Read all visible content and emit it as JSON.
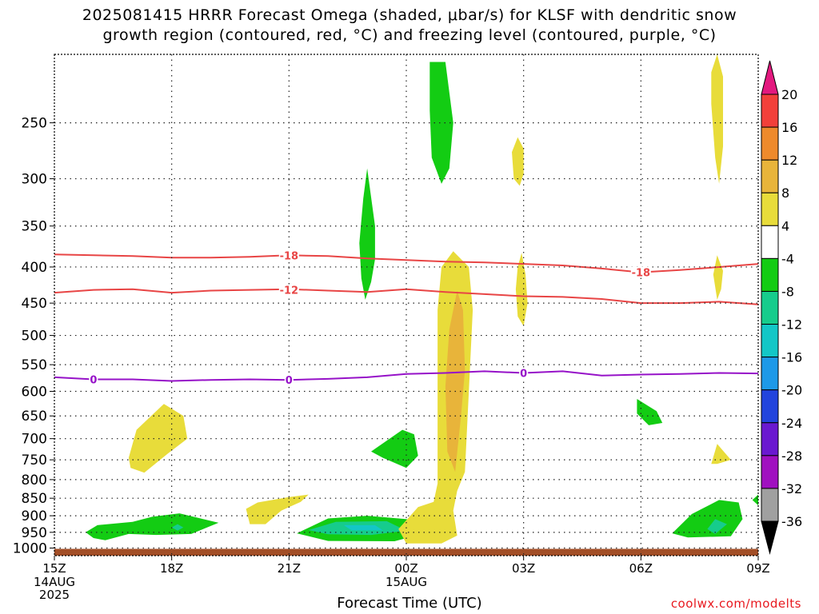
{
  "title": {
    "line1": "2025081415 HRRR Forecast Omega (shaded, μbar/s) for KLSF with dendritic snow",
    "line2": "growth region (contoured, red, °C) and freezing level (contoured, purple, °C)"
  },
  "credit": "coolwx.com/modelts",
  "chart_data": {
    "type": "heatmap",
    "xlabel": "Forecast Time (UTC)",
    "x_ticks": [
      {
        "hour": 0,
        "label": "15Z",
        "sub": [
          "14AUG",
          "2025"
        ]
      },
      {
        "hour": 3,
        "label": "18Z"
      },
      {
        "hour": 6,
        "label": "21Z"
      },
      {
        "hour": 9,
        "label": "00Z",
        "sub": [
          "15AUG"
        ]
      },
      {
        "hour": 12,
        "label": "03Z"
      },
      {
        "hour": 15,
        "label": "06Z"
      },
      {
        "hour": 18,
        "label": "09Z"
      }
    ],
    "xlim": [
      0,
      18
    ],
    "y_ticks": [
      250,
      300,
      350,
      400,
      450,
      500,
      550,
      600,
      650,
      700,
      750,
      800,
      850,
      900,
      950,
      1000
    ],
    "ylim": [
      1025,
      200
    ],
    "y_scale": "log",
    "grid": true,
    "colorbar": {
      "labels": [
        "20",
        "16",
        "12",
        "8",
        "4",
        "-4",
        "-8",
        "-12",
        "-16",
        "-20",
        "-24",
        "-28",
        "-32",
        "-36"
      ],
      "colors": [
        "#e3197f",
        "#f2403a",
        "#ee8a2c",
        "#e8b43a",
        "#e8dc3a",
        "#ffffff",
        "#13cc13",
        "#16cc8c",
        "#13c7c7",
        "#1d99e8",
        "#2244dd",
        "#6a18d0",
        "#a010c0",
        "#a0a0a0",
        "#000000"
      ]
    },
    "contours": [
      {
        "name": "dendritic -18",
        "label": "-18",
        "color": "#e84545",
        "points": [
          [
            0,
            384
          ],
          [
            1,
            385
          ],
          [
            2,
            386
          ],
          [
            3,
            388
          ],
          [
            4,
            388
          ],
          [
            5,
            387
          ],
          [
            6,
            385
          ],
          [
            7,
            386
          ],
          [
            8,
            389
          ],
          [
            9,
            391
          ],
          [
            10,
            393
          ],
          [
            11,
            394
          ],
          [
            12,
            396
          ],
          [
            13,
            398
          ],
          [
            14,
            402
          ],
          [
            15,
            407
          ],
          [
            16,
            404
          ],
          [
            17,
            400
          ],
          [
            18,
            396
          ]
        ]
      },
      {
        "name": "dendritic -12",
        "label": "-12",
        "color": "#e84545",
        "points": [
          [
            0,
            435
          ],
          [
            1,
            431
          ],
          [
            2,
            430
          ],
          [
            3,
            435
          ],
          [
            4,
            432
          ],
          [
            5,
            431
          ],
          [
            6,
            430
          ],
          [
            7,
            432
          ],
          [
            8,
            434
          ],
          [
            9,
            430
          ],
          [
            10,
            434
          ],
          [
            11,
            437
          ],
          [
            12,
            440
          ],
          [
            13,
            441
          ],
          [
            14,
            444
          ],
          [
            15,
            450
          ],
          [
            16,
            450
          ],
          [
            17,
            448
          ],
          [
            18,
            452
          ]
        ]
      },
      {
        "name": "freezing level",
        "label": "0",
        "color": "#9612c8",
        "points": [
          [
            0,
            573
          ],
          [
            1,
            577
          ],
          [
            2,
            577
          ],
          [
            3,
            580
          ],
          [
            4,
            578
          ],
          [
            5,
            577
          ],
          [
            6,
            578
          ],
          [
            7,
            576
          ],
          [
            8,
            573
          ],
          [
            9,
            567
          ],
          [
            10,
            565
          ],
          [
            11,
            562
          ],
          [
            12,
            565
          ],
          [
            13,
            562
          ],
          [
            14,
            570
          ],
          [
            15,
            568
          ],
          [
            16,
            567
          ],
          [
            17,
            565
          ],
          [
            18,
            566
          ]
        ]
      }
    ],
    "contour_labels": [
      {
        "label": "0",
        "hour": 1.0,
        "p": 577,
        "color": "#9612c8"
      },
      {
        "label": "0",
        "hour": 6.0,
        "p": 578,
        "color": "#9612c8"
      },
      {
        "label": "0",
        "hour": 12.0,
        "p": 565,
        "color": "#9612c8"
      },
      {
        "label": "-18",
        "hour": 6.0,
        "p": 385,
        "color": "#e84545"
      },
      {
        "label": "-12",
        "hour": 6.0,
        "p": 431,
        "color": "#e84545"
      },
      {
        "label": "-18",
        "hour": 15.0,
        "p": 407,
        "color": "#e84545"
      }
    ],
    "shaded_regions": [
      {
        "omega_level": "-4",
        "color": "#13cc13",
        "outline": [
          [
            1.0,
            968
          ],
          [
            0.8,
            950
          ],
          [
            1.1,
            928
          ],
          [
            2.0,
            918
          ],
          [
            2.5,
            903
          ],
          [
            3.2,
            893
          ],
          [
            4.2,
            921
          ],
          [
            3.5,
            955
          ],
          [
            2.6,
            958
          ],
          [
            1.9,
            955
          ],
          [
            1.3,
            975
          ]
        ]
      },
      {
        "omega_level": "-8",
        "color": "#16cc8c",
        "outline": [
          [
            3.0,
            935
          ],
          [
            3.15,
            925
          ],
          [
            3.3,
            935
          ],
          [
            3.15,
            945
          ]
        ]
      },
      {
        "omega_level": "-4",
        "color": "#13cc13",
        "outline": [
          [
            6.2,
            953
          ],
          [
            7.0,
            908
          ],
          [
            8.0,
            900
          ],
          [
            9.2,
            912
          ],
          [
            9.5,
            952
          ],
          [
            8.7,
            978
          ],
          [
            7.0,
            977
          ]
        ]
      },
      {
        "omega_level": "-8",
        "color": "#16cc8c",
        "outline": [
          [
            6.5,
            943
          ],
          [
            7.2,
            918
          ],
          [
            8.5,
            916
          ],
          [
            9.0,
            945
          ],
          [
            8.1,
            958
          ],
          [
            7.0,
            956
          ]
        ]
      },
      {
        "omega_level": "-12",
        "color": "#13c7c7",
        "outline": [
          [
            7.4,
            928
          ],
          [
            8.2,
            928
          ],
          [
            8.4,
            944
          ],
          [
            7.6,
            944
          ]
        ]
      },
      {
        "omega_level": "-4",
        "color": "#13cc13",
        "outline": [
          [
            15.8,
            953
          ],
          [
            16.3,
            895
          ],
          [
            17.0,
            855
          ],
          [
            17.5,
            862
          ],
          [
            17.6,
            910
          ],
          [
            17.3,
            962
          ],
          [
            16.2,
            966
          ]
        ]
      },
      {
        "omega_level": "-8",
        "color": "#16cc8c",
        "outline": [
          [
            16.7,
            940
          ],
          [
            16.9,
            910
          ],
          [
            17.2,
            925
          ],
          [
            16.9,
            955
          ]
        ]
      },
      {
        "omega_level": "-4",
        "color": "#13cc13",
        "outline": [
          [
            7.8,
            370
          ],
          [
            7.9,
            320
          ],
          [
            8.0,
            290
          ],
          [
            8.2,
            350
          ],
          [
            8.2,
            390
          ],
          [
            8.1,
            420
          ],
          [
            7.95,
            445
          ],
          [
            7.85,
            415
          ]
        ]
      },
      {
        "omega_level": "-4",
        "color": "#13cc13",
        "outline": [
          [
            8.1,
            730
          ],
          [
            8.9,
            680
          ],
          [
            9.2,
            690
          ],
          [
            9.3,
            740
          ],
          [
            9.0,
            770
          ],
          [
            8.4,
            745
          ]
        ]
      },
      {
        "omega_level": "-4",
        "color": "#13cc13",
        "outline": [
          [
            9.6,
            205
          ],
          [
            10.0,
            205
          ],
          [
            10.2,
            250
          ],
          [
            10.1,
            290
          ],
          [
            9.9,
            305
          ],
          [
            9.65,
            280
          ],
          [
            9.6,
            240
          ]
        ]
      },
      {
        "omega_level": "-4",
        "color": "#13cc13",
        "outline": [
          [
            14.9,
            615
          ],
          [
            15.4,
            640
          ],
          [
            15.55,
            665
          ],
          [
            15.2,
            670
          ],
          [
            14.9,
            645
          ]
        ]
      },
      {
        "omega_level": "-4",
        "color": "#13cc13",
        "outline": [
          [
            17.85,
            855
          ],
          [
            18,
            840
          ],
          [
            18,
            870
          ]
        ]
      },
      {
        "omega_level": "4",
        "color": "#e8dc3a",
        "outline": [
          [
            1.9,
            745
          ],
          [
            2.1,
            680
          ],
          [
            2.8,
            625
          ],
          [
            3.3,
            650
          ],
          [
            3.4,
            700
          ],
          [
            2.9,
            735
          ],
          [
            2.3,
            782
          ],
          [
            1.95,
            770
          ]
        ]
      },
      {
        "omega_level": "4",
        "color": "#e8dc3a",
        "outline": [
          [
            4.9,
            880
          ],
          [
            5.2,
            862
          ],
          [
            6.0,
            847
          ],
          [
            6.5,
            840
          ],
          [
            6.3,
            860
          ],
          [
            5.8,
            885
          ],
          [
            5.4,
            925
          ],
          [
            5.0,
            925
          ]
        ]
      },
      {
        "omega_level": "4",
        "color": "#e8dc3a",
        "outline": [
          [
            9.8,
            460
          ],
          [
            9.9,
            400
          ],
          [
            10.2,
            380
          ],
          [
            10.6,
            400
          ],
          [
            10.7,
            460
          ],
          [
            10.6,
            600
          ],
          [
            10.5,
            780
          ],
          [
            10.3,
            830
          ],
          [
            10.2,
            885
          ],
          [
            10.3,
            960
          ],
          [
            9.9,
            985
          ],
          [
            9.0,
            985
          ],
          [
            8.8,
            940
          ],
          [
            9.3,
            875
          ],
          [
            9.7,
            860
          ],
          [
            9.8,
            810
          ],
          [
            9.8,
            700
          ]
        ]
      },
      {
        "omega_level": "8",
        "color": "#e8b43a",
        "outline": [
          [
            10.1,
            490
          ],
          [
            10.3,
            432
          ],
          [
            10.45,
            460
          ],
          [
            10.5,
            560
          ],
          [
            10.4,
            650
          ],
          [
            10.25,
            780
          ],
          [
            10.05,
            730
          ],
          [
            10.0,
            590
          ]
        ]
      },
      {
        "omega_level": "4",
        "color": "#e8dc3a",
        "outline": [
          [
            11.7,
            275
          ],
          [
            11.85,
            262
          ],
          [
            12.0,
            272
          ],
          [
            12.0,
            295
          ],
          [
            11.9,
            307
          ],
          [
            11.75,
            300
          ]
        ]
      },
      {
        "omega_level": "4",
        "color": "#e8dc3a",
        "outline": [
          [
            11.8,
            430
          ],
          [
            11.85,
            400
          ],
          [
            11.95,
            382
          ],
          [
            12.05,
            410
          ],
          [
            12.1,
            450
          ],
          [
            12.0,
            485
          ],
          [
            11.85,
            470
          ]
        ]
      },
      {
        "omega_level": "4",
        "color": "#e8dc3a",
        "outline": [
          [
            16.8,
            212
          ],
          [
            16.95,
            200
          ],
          [
            17.1,
            215
          ],
          [
            17.1,
            270
          ],
          [
            17.0,
            305
          ],
          [
            16.9,
            280
          ],
          [
            16.8,
            235
          ]
        ]
      },
      {
        "omega_level": "4",
        "color": "#e8dc3a",
        "outline": [
          [
            16.85,
            410
          ],
          [
            16.95,
            385
          ],
          [
            17.1,
            405
          ],
          [
            17.05,
            430
          ],
          [
            16.95,
            445
          ]
        ]
      },
      {
        "omega_level": "4",
        "color": "#e8dc3a",
        "outline": [
          [
            16.8,
            760
          ],
          [
            16.95,
            712
          ],
          [
            17.3,
            750
          ],
          [
            16.95,
            760
          ]
        ]
      }
    ]
  }
}
